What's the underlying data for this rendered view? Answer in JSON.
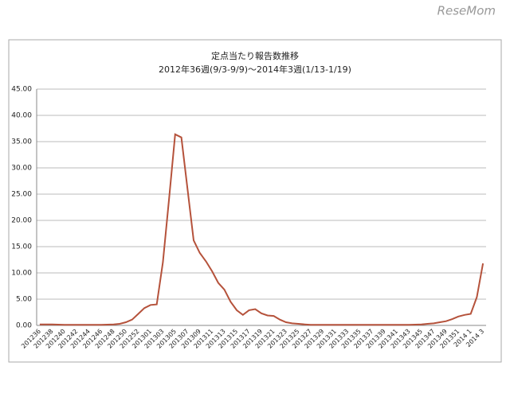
{
  "watermark": "ReseMom",
  "chart_data": {
    "type": "line",
    "title": "定点当たり報告数推移",
    "subtitle": "2012年36週(9/3-9/9)〜2014年3週(1/13-1/19)",
    "categories": [
      "201236",
      null,
      "201238",
      null,
      "201240",
      null,
      "201242",
      null,
      "201244",
      null,
      "201246",
      null,
      "201248",
      null,
      "201250",
      null,
      "201252",
      null,
      "201301",
      null,
      "201303",
      null,
      "201305",
      null,
      "201307",
      null,
      "201309",
      null,
      "201311",
      null,
      "201313",
      null,
      "201315",
      null,
      "201317",
      null,
      "201319",
      null,
      "201321",
      null,
      "201323",
      null,
      "201325",
      null,
      "201327",
      null,
      "201329",
      null,
      "201331",
      null,
      "201333",
      null,
      "201335",
      null,
      "201337",
      null,
      "201339",
      null,
      "201341",
      null,
      "201343",
      null,
      "201345",
      null,
      "201347",
      null,
      "201349",
      null,
      "201351",
      null,
      "2014 1",
      null,
      "2014 3"
    ],
    "series": [
      {
        "color": "#b5523b",
        "values": [
          0.2,
          0.2,
          0.2,
          0.15,
          0.1,
          0.1,
          0.1,
          0.1,
          0.1,
          0.1,
          0.1,
          0.15,
          0.2,
          0.3,
          0.6,
          1.1,
          2.2,
          3.3,
          3.9,
          4.0,
          12.0,
          24.0,
          36.4,
          35.8,
          26.0,
          16.2,
          13.8,
          12.2,
          10.3,
          8.1,
          6.8,
          4.5,
          2.9,
          2.0,
          2.9,
          3.1,
          2.3,
          1.9,
          1.8,
          1.1,
          0.6,
          0.4,
          0.3,
          0.2,
          0.1,
          0.1,
          0.1,
          0.1,
          0.1,
          0.1,
          0.1,
          0.1,
          0.1,
          0.1,
          0.1,
          0.1,
          0.1,
          0.1,
          0.1,
          0.1,
          0.1,
          0.15,
          0.2,
          0.3,
          0.4,
          0.6,
          0.8,
          1.2,
          1.7,
          2.0,
          2.2,
          5.4,
          11.8
        ]
      }
    ],
    "ylim": [
      0,
      45
    ],
    "yticks": [
      {
        "value": 0,
        "label": "0.00"
      },
      {
        "value": 5,
        "label": "5.00"
      },
      {
        "value": 10,
        "label": "10.00"
      },
      {
        "value": 15,
        "label": "15.00"
      },
      {
        "value": 20,
        "label": "20.00"
      },
      {
        "value": 25,
        "label": "25.00"
      },
      {
        "value": 30,
        "label": "30.00"
      },
      {
        "value": 35,
        "label": "35.00"
      },
      {
        "value": 40,
        "label": "40.00"
      },
      {
        "value": 45,
        "label": "45.00"
      }
    ],
    "grid": true
  }
}
